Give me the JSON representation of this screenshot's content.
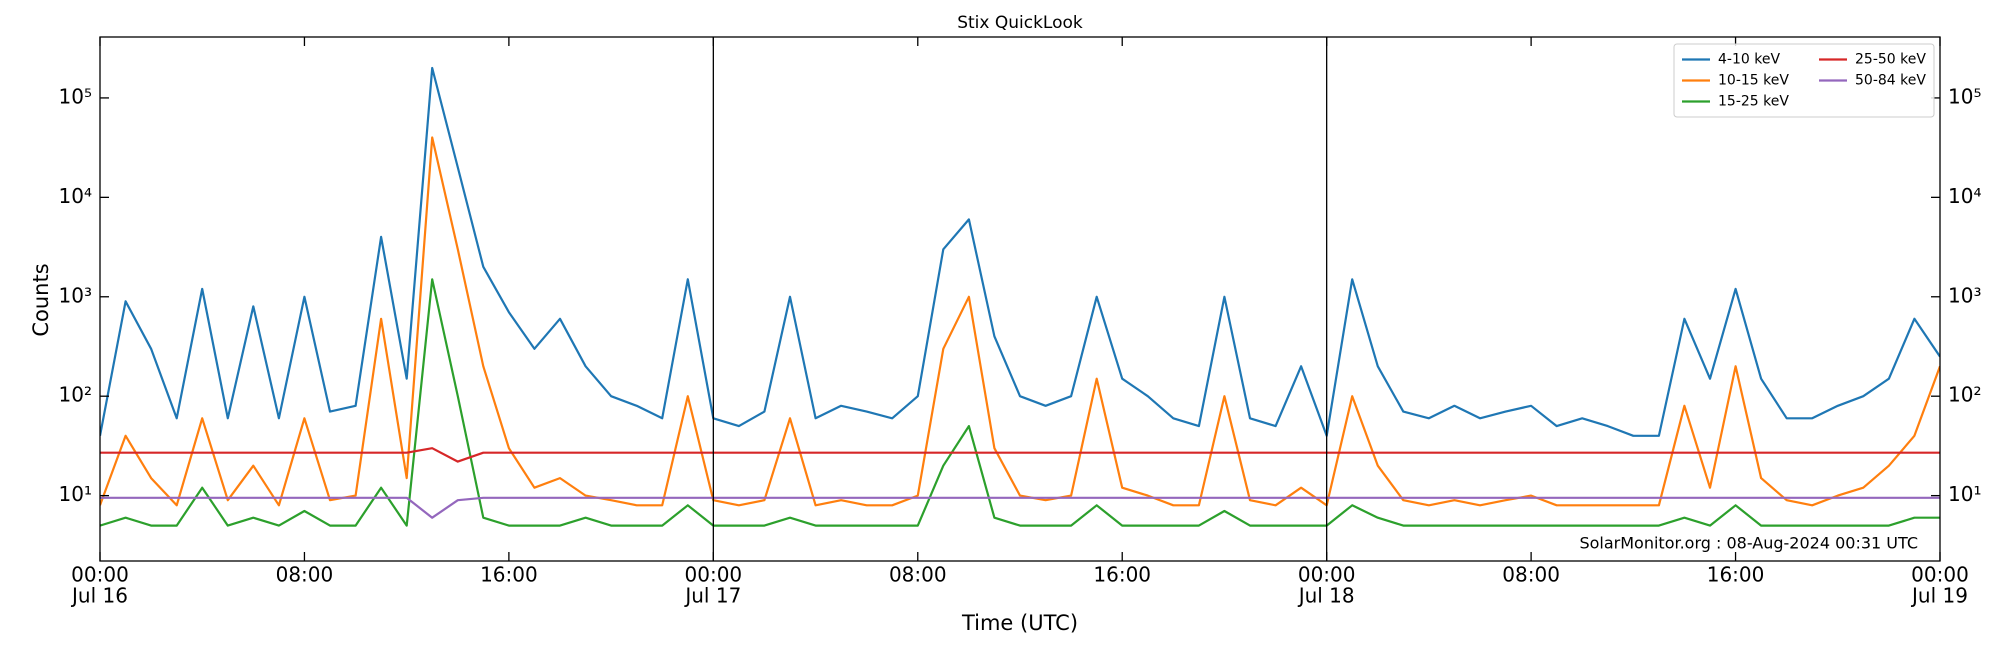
{
  "chart_data": {
    "type": "line",
    "title": "Stix QuickLook",
    "xlabel": "Time (UTC)",
    "ylabel": "Counts",
    "annotation": "SolarMonitor.org : 08-Aug-2024 00:31 UTC",
    "yscale": "log",
    "ylim": [
      2.2,
      410000
    ],
    "yticks": [
      {
        "value": 10,
        "label": "10¹"
      },
      {
        "value": 100,
        "label": "10²"
      },
      {
        "value": 1000,
        "label": "10³"
      },
      {
        "value": 10000,
        "label": "10⁴"
      },
      {
        "value": 100000,
        "label": "10⁵"
      }
    ],
    "xlim": [
      "Jul 16 00:00",
      "Jul 19 00:00"
    ],
    "xticks": [
      {
        "value": "Jul 16 00:00",
        "label": "00:00"
      },
      {
        "value": "Jul 16 08:00",
        "label": "08:00"
      },
      {
        "value": "Jul 16 16:00",
        "label": "16:00"
      },
      {
        "value": "Jul 17 00:00",
        "label": "00:00"
      },
      {
        "value": "Jul 17 08:00",
        "label": "08:00"
      },
      {
        "value": "Jul 17 16:00",
        "label": "16:00"
      },
      {
        "value": "Jul 18 00:00",
        "label": "00:00"
      },
      {
        "value": "Jul 18 08:00",
        "label": "08:00"
      },
      {
        "value": "Jul 18 16:00",
        "label": "16:00"
      },
      {
        "value": "Jul 19 00:00",
        "label": "00:00"
      }
    ],
    "xdate_labels": [
      {
        "value": "Jul 16 00:00",
        "label": "Jul 16"
      },
      {
        "value": "Jul 17 00:00",
        "label": "Jul 17"
      },
      {
        "value": "Jul 18 00:00",
        "label": "Jul 18"
      },
      {
        "value": "Jul 19 00:00",
        "label": "Jul 19"
      }
    ],
    "day_lines": [
      "Jul 17 00:00",
      "Jul 18 00:00"
    ],
    "legend": "upper right",
    "x": [
      "Jul 16 00:00",
      "Jul 16 01:00",
      "Jul 16 02:00",
      "Jul 16 03:00",
      "Jul 16 04:00",
      "Jul 16 05:00",
      "Jul 16 06:00",
      "Jul 16 07:00",
      "Jul 16 08:00",
      "Jul 16 09:00",
      "Jul 16 10:00",
      "Jul 16 11:00",
      "Jul 16 12:00",
      "Jul 16 13:00",
      "Jul 16 14:00",
      "Jul 16 15:00",
      "Jul 16 16:00",
      "Jul 16 17:00",
      "Jul 16 18:00",
      "Jul 16 19:00",
      "Jul 16 20:00",
      "Jul 16 21:00",
      "Jul 16 22:00",
      "Jul 16 23:00",
      "Jul 17 00:00",
      "Jul 17 01:00",
      "Jul 17 02:00",
      "Jul 17 03:00",
      "Jul 17 04:00",
      "Jul 17 05:00",
      "Jul 17 06:00",
      "Jul 17 07:00",
      "Jul 17 08:00",
      "Jul 17 09:00",
      "Jul 17 10:00",
      "Jul 17 11:00",
      "Jul 17 12:00",
      "Jul 17 13:00",
      "Jul 17 14:00",
      "Jul 17 15:00",
      "Jul 17 16:00",
      "Jul 17 17:00",
      "Jul 17 18:00",
      "Jul 17 19:00",
      "Jul 17 20:00",
      "Jul 17 21:00",
      "Jul 17 22:00",
      "Jul 17 23:00",
      "Jul 18 00:00",
      "Jul 18 01:00",
      "Jul 18 02:00",
      "Jul 18 03:00",
      "Jul 18 04:00",
      "Jul 18 05:00",
      "Jul 18 06:00",
      "Jul 18 07:00",
      "Jul 18 08:00",
      "Jul 18 09:00",
      "Jul 18 10:00",
      "Jul 18 11:00",
      "Jul 18 12:00",
      "Jul 18 13:00",
      "Jul 18 14:00",
      "Jul 18 15:00",
      "Jul 18 16:00",
      "Jul 18 17:00",
      "Jul 18 18:00",
      "Jul 18 19:00",
      "Jul 18 20:00",
      "Jul 18 21:00",
      "Jul 18 22:00",
      "Jul 18 23:00",
      "Jul 19 00:00"
    ],
    "series": [
      {
        "name": "4-10 keV",
        "color": "#1f77b4",
        "values": [
          40,
          900,
          300,
          60,
          1200,
          60,
          800,
          60,
          1000,
          70,
          80,
          4000,
          150,
          200000,
          20000,
          2000,
          700,
          300,
          600,
          200,
          100,
          80,
          60,
          1500,
          60,
          50,
          70,
          1000,
          60,
          80,
          70,
          60,
          100,
          3000,
          6000,
          400,
          100,
          80,
          100,
          1000,
          150,
          100,
          60,
          50,
          1000,
          60,
          50,
          200,
          40,
          1500,
          200,
          70,
          60,
          80,
          60,
          70,
          80,
          50,
          60,
          50,
          40,
          40,
          600,
          150,
          1200,
          150,
          60,
          60,
          80,
          100,
          150,
          600,
          250
        ]
      },
      {
        "name": "10-15 keV",
        "color": "#ff7f0e",
        "values": [
          8,
          40,
          15,
          8,
          60,
          9,
          20,
          8,
          60,
          9,
          10,
          600,
          15,
          40000,
          3000,
          200,
          30,
          12,
          15,
          10,
          9,
          8,
          8,
          100,
          9,
          8,
          9,
          60,
          8,
          9,
          8,
          8,
          10,
          300,
          1000,
          30,
          10,
          9,
          10,
          150,
          12,
          10,
          8,
          8,
          100,
          9,
          8,
          12,
          8,
          100,
          20,
          9,
          8,
          9,
          8,
          9,
          10,
          8,
          8,
          8,
          8,
          8,
          80,
          12,
          200,
          15,
          9,
          8,
          10,
          12,
          20,
          40,
          200
        ]
      },
      {
        "name": "15-25 keV",
        "color": "#2ca02c",
        "values": [
          5,
          6,
          5,
          5,
          12,
          5,
          6,
          5,
          7,
          5,
          5,
          12,
          5,
          1500,
          100,
          6,
          5,
          5,
          5,
          6,
          5,
          5,
          5,
          8,
          5,
          5,
          5,
          6,
          5,
          5,
          5,
          5,
          5,
          20,
          50,
          6,
          5,
          5,
          5,
          8,
          5,
          5,
          5,
          5,
          7,
          5,
          5,
          5,
          5,
          8,
          6,
          5,
          5,
          5,
          5,
          5,
          5,
          5,
          5,
          5,
          5,
          5,
          6,
          5,
          8,
          5,
          5,
          5,
          5,
          5,
          5,
          6,
          6
        ]
      },
      {
        "name": "25-50 keV",
        "color": "#d62728",
        "values": [
          27,
          27,
          27,
          27,
          27,
          27,
          27,
          27,
          27,
          27,
          27,
          27,
          27,
          30,
          22,
          27,
          27,
          27,
          27,
          27,
          27,
          27,
          27,
          27,
          27,
          27,
          27,
          27,
          27,
          27,
          27,
          27,
          27,
          27,
          27,
          27,
          27,
          27,
          27,
          27,
          27,
          27,
          27,
          27,
          27,
          27,
          27,
          27,
          27,
          27,
          27,
          27,
          27,
          27,
          27,
          27,
          27,
          27,
          27,
          27,
          27,
          27,
          27,
          27,
          27,
          27,
          27,
          27,
          27,
          27,
          27,
          27,
          27
        ]
      },
      {
        "name": "50-84 keV",
        "color": "#9467bd",
        "values": [
          9.5,
          9.5,
          9.5,
          9.5,
          9.5,
          9.5,
          9.5,
          9.5,
          9.5,
          9.5,
          9.5,
          9.5,
          9.5,
          6,
          9,
          9.5,
          9.5,
          9.5,
          9.5,
          9.5,
          9.5,
          9.5,
          9.5,
          9.5,
          9.5,
          9.5,
          9.5,
          9.5,
          9.5,
          9.5,
          9.5,
          9.5,
          9.5,
          9.5,
          9.5,
          9.5,
          9.5,
          9.5,
          9.5,
          9.5,
          9.5,
          9.5,
          9.5,
          9.5,
          9.5,
          9.5,
          9.5,
          9.5,
          9.5,
          9.5,
          9.5,
          9.5,
          9.5,
          9.5,
          9.5,
          9.5,
          9.5,
          9.5,
          9.5,
          9.5,
          9.5,
          9.5,
          9.5,
          9.5,
          9.5,
          9.5,
          9.5,
          9.5,
          9.5,
          9.5,
          9.5,
          9.5,
          9.5
        ]
      }
    ]
  }
}
